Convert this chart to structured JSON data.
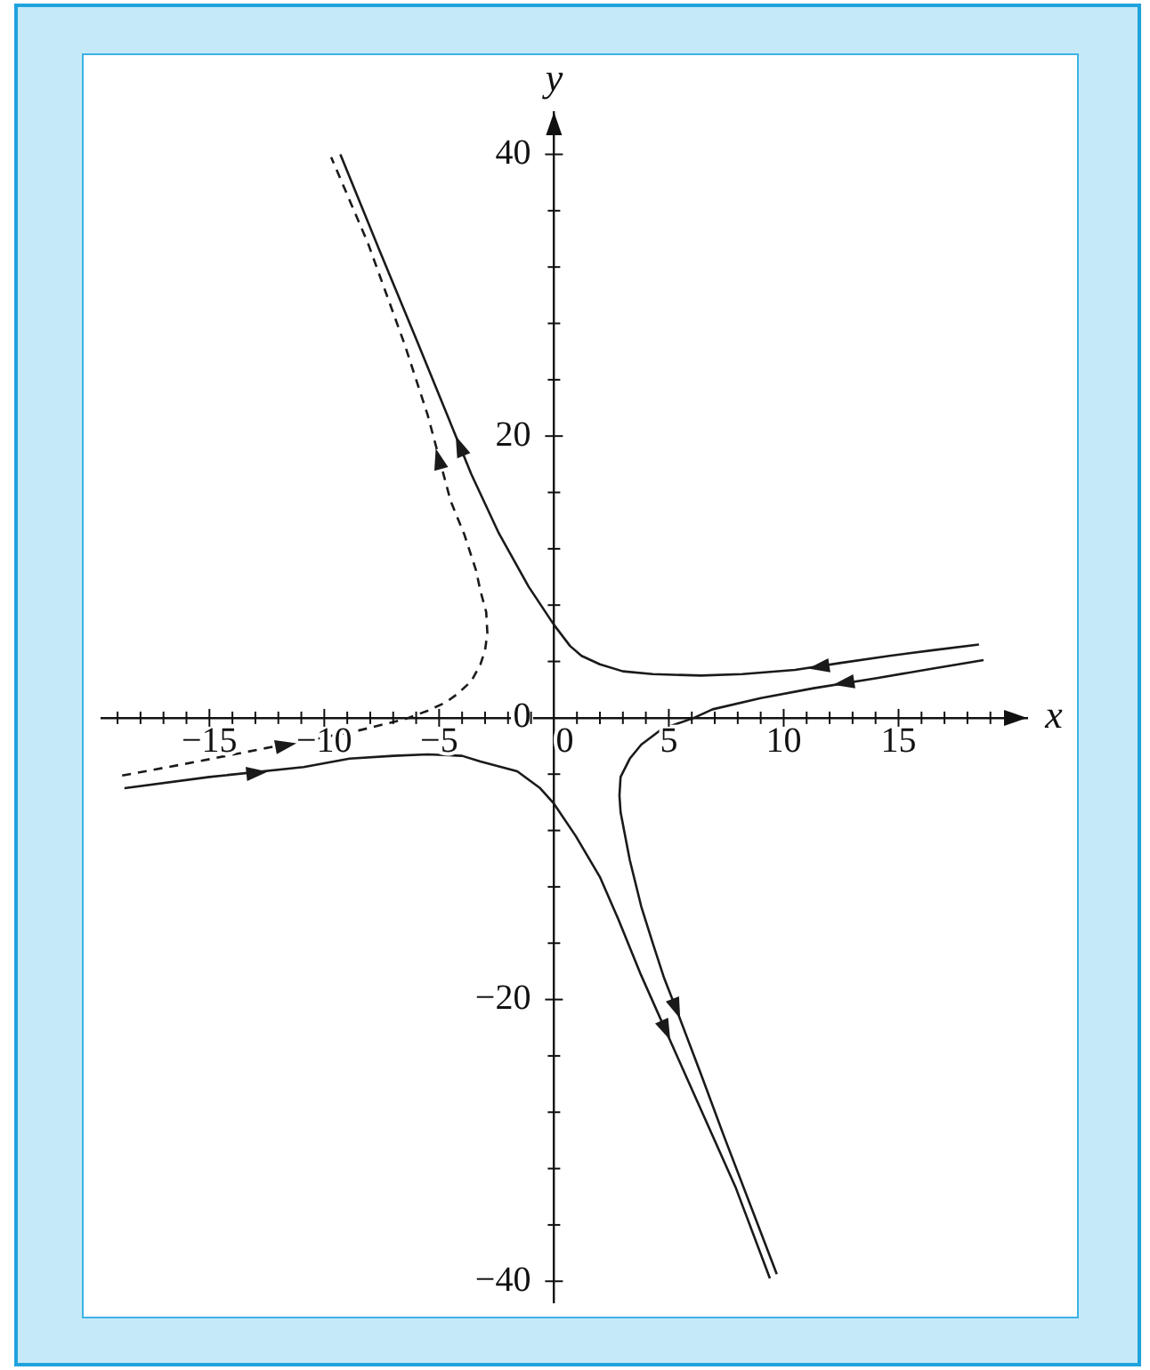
{
  "chart_data": {
    "type": "line",
    "xlabel": "x",
    "ylabel": "y",
    "xlim": [
      -19.7,
      20.6
    ],
    "ylim": [
      -41.5,
      43
    ],
    "xticks": [
      {
        "value": -19,
        "label": null
      },
      {
        "value": -18,
        "label": null
      },
      {
        "value": -17,
        "label": null
      },
      {
        "value": -16,
        "label": null
      },
      {
        "value": -15,
        "label": "−15"
      },
      {
        "value": -14,
        "label": null
      },
      {
        "value": -13,
        "label": null
      },
      {
        "value": -12,
        "label": null
      },
      {
        "value": -11,
        "label": null
      },
      {
        "value": -10,
        "label": "−10"
      },
      {
        "value": -9,
        "label": null
      },
      {
        "value": -8,
        "label": null
      },
      {
        "value": -7,
        "label": null
      },
      {
        "value": -6,
        "label": null
      },
      {
        "value": -5,
        "label": "−5"
      },
      {
        "value": -4,
        "label": null
      },
      {
        "value": -3,
        "label": null
      },
      {
        "value": -2,
        "label": null
      },
      {
        "value": -1,
        "label": null
      },
      0,
      {
        "value": 1,
        "label": null
      },
      {
        "value": 2,
        "label": null
      },
      {
        "value": 3,
        "label": null
      },
      {
        "value": 4,
        "label": null
      },
      5,
      {
        "value": 6,
        "label": null
      },
      {
        "value": 7,
        "label": null
      },
      {
        "value": 8,
        "label": null
      },
      {
        "value": 9,
        "label": null
      },
      10,
      {
        "value": 11,
        "label": null
      },
      {
        "value": 12,
        "label": null
      },
      {
        "value": 13,
        "label": null
      },
      {
        "value": 14,
        "label": null
      },
      15,
      {
        "value": 16,
        "label": null
      },
      {
        "value": 17,
        "label": null
      },
      {
        "value": 18,
        "label": null
      },
      {
        "value": 19,
        "label": null
      }
    ],
    "yticks": [
      {
        "value": -40,
        "label": "−40"
      },
      {
        "value": -36,
        "label": null
      },
      {
        "value": -32,
        "label": null
      },
      {
        "value": -28,
        "label": null
      },
      {
        "value": -24,
        "label": null
      },
      {
        "value": -20,
        "label": "−20"
      },
      {
        "value": -16,
        "label": null
      },
      {
        "value": -12,
        "label": null
      },
      {
        "value": -8,
        "label": null
      },
      {
        "value": -4,
        "label": null
      },
      0,
      {
        "value": 4,
        "label": null
      },
      {
        "value": 8,
        "label": null
      },
      {
        "value": 12,
        "label": null
      },
      {
        "value": 16,
        "label": null
      },
      20,
      {
        "value": 24,
        "label": null
      },
      {
        "value": 28,
        "label": null
      },
      {
        "value": 32,
        "label": null
      },
      {
        "value": 36,
        "label": null
      },
      40
    ],
    "series": [
      {
        "color": "#1a1a1a",
        "x": [
          18.5,
          16.5,
          14.6,
          12.5,
          10.5,
          8.2,
          6.4,
          4.3,
          3.0,
          2.0,
          1.2,
          0.7,
          0,
          -1.1,
          -2.4,
          -3.6,
          -4.6,
          -6.0,
          -7.6,
          -9.3
        ],
        "values": [
          5.2,
          4.8,
          4.4,
          3.9,
          3.4,
          3.1,
          3.0,
          3.1,
          3.3,
          3.8,
          4.4,
          5.1,
          6.6,
          9.3,
          13.1,
          17.3,
          21.3,
          26.9,
          33.2,
          40.0
        ]
      },
      {
        "color": "#1a1a1a",
        "x": [
          18.7,
          16.5,
          14.0,
          11.3,
          9.0,
          6.9,
          6.1,
          4.7,
          3.8,
          3.3,
          2.9,
          2.85,
          2.9,
          3.3,
          3.8,
          4.3,
          4.8,
          5.4,
          6.4,
          7.4,
          8.6,
          9.7
        ],
        "values": [
          4.1,
          3.5,
          2.8,
          2.1,
          1.4,
          0.6,
          0,
          -0.8,
          -1.9,
          -2.9,
          -4.2,
          -5.5,
          -6.7,
          -10.1,
          -13.4,
          -16.0,
          -18.5,
          -21.0,
          -25.3,
          -29.7,
          -34.8,
          -39.5
        ]
      },
      {
        "color": "#1a1a1a",
        "x": [
          -18.7,
          -15.0,
          -10.9,
          -8.9,
          -7.0,
          -5.5,
          -4.0,
          -3.2,
          -1.6,
          -0.6,
          0,
          0.95,
          2.0,
          2.8,
          3.8,
          5.9,
          7.9,
          9.4
        ],
        "values": [
          -5.0,
          -4.2,
          -3.5,
          -2.9,
          -2.7,
          -2.6,
          -2.7,
          -3.1,
          -3.8,
          -5.0,
          -6.1,
          -8.4,
          -11.3,
          -14.3,
          -18.3,
          -26.0,
          -33.3,
          -39.8
        ]
      },
      {
        "color": "#1a1a1a",
        "line_style": "dashed",
        "x": [
          -18.8,
          -15.5,
          -12.7,
          -10.7,
          -8.5,
          -6.5,
          -5.5,
          -4.7,
          -4.2,
          -3.6,
          -3.2,
          -3.0,
          -2.9,
          -2.95,
          -3.2,
          -3.4,
          -3.9,
          -4.5,
          -5.5,
          -6.5,
          -8.1,
          -9.7
        ],
        "values": [
          -4.1,
          -3.1,
          -2.2,
          -1.6,
          -0.9,
          -0.1,
          0.5,
          1.1,
          1.7,
          2.6,
          3.8,
          4.8,
          6.0,
          7.5,
          9.0,
          10.5,
          13.0,
          15.4,
          21.5,
          26.5,
          33.7,
          39.8
        ]
      }
    ]
  }
}
